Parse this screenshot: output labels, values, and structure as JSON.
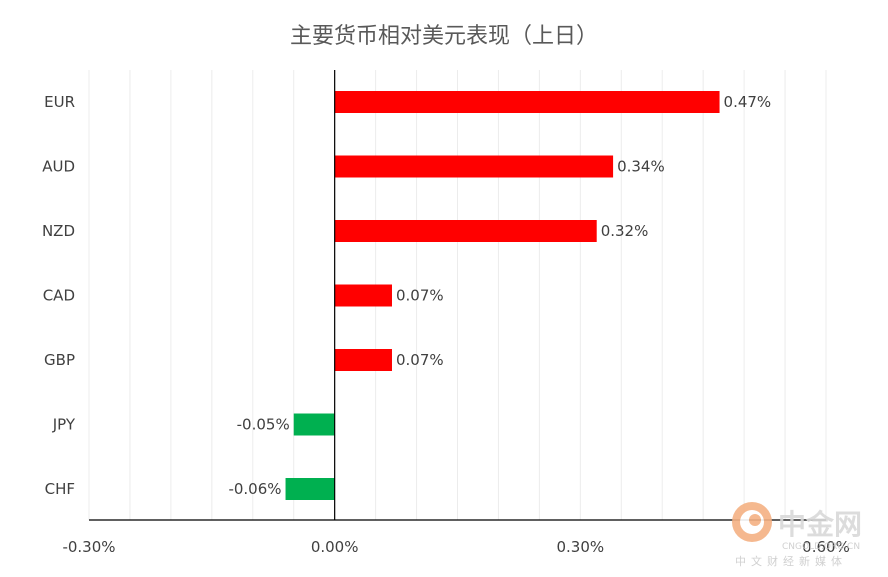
{
  "chart_data": {
    "type": "bar",
    "orientation": "horizontal",
    "title": "主要货币相对美元表现（上日）",
    "categories": [
      "EUR",
      "AUD",
      "NZD",
      "CAD",
      "GBP",
      "JPY",
      "CHF"
    ],
    "values": [
      0.47,
      0.34,
      0.32,
      0.07,
      0.07,
      -0.05,
      -0.06
    ],
    "data_labels": [
      "0.47%",
      "0.34%",
      "0.32%",
      "0.07%",
      "0.07%",
      "-0.05%",
      "-0.06%"
    ],
    "xlim": [
      -0.3,
      0.6
    ],
    "x_ticks": [
      -0.3,
      0.0,
      0.3,
      0.6
    ],
    "x_tick_labels": [
      "-0.30%",
      "0.00%",
      "0.30%",
      "0.60%"
    ],
    "grid": true,
    "colors": {
      "positive": "#ff0000",
      "negative": "#00b050"
    }
  },
  "watermark": {
    "name": "中金网",
    "domain": "CNGOLD.ORG.CN",
    "subtitle": "中文财经新媒体"
  }
}
